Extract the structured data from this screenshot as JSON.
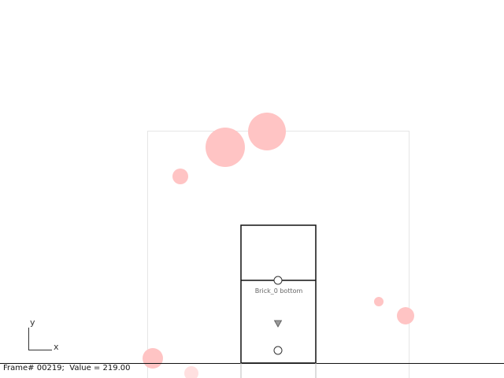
{
  "status": {
    "frame_label": "Frame#",
    "frame_number": "00219;",
    "value_label": "Value =",
    "value": "219.00"
  },
  "brick": {
    "label": "Brick_0 bottom"
  },
  "axes": {
    "x_label": "x",
    "y_label": "y"
  },
  "colors": {
    "particle": "#ffc4c4",
    "particle_light": "#ffe0e0",
    "outline": "#111111",
    "bounds": "#e6e6e6",
    "marker": "#999999"
  }
}
